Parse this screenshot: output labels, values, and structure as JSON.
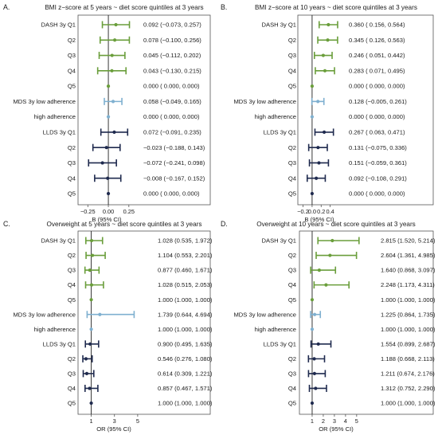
{
  "chart_data": [
    {
      "type": "forest",
      "panel": "A.",
      "title": "BMI z−score at 5 years ~ diet score quintiles at 3 years",
      "xlabel": "B (95% CI)",
      "xlim": [
        -0.35,
        0.31
      ],
      "xticks": [
        -0.25,
        0.0,
        0.25
      ],
      "xtick_labels": [
        "−0.25",
        "0.00",
        "0.25"
      ],
      "ref_line": 0,
      "rows": [
        {
          "label": "DASH 3y Q1",
          "est": 0.092,
          "lo": -0.073,
          "hi": 0.257,
          "text": "0.092 (−0.073, 0.257)",
          "group": "DASH"
        },
        {
          "label": "Q2",
          "est": 0.078,
          "lo": -0.1,
          "hi": 0.256,
          "text": "0.078 (−0.100, 0.256)",
          "group": "DASH"
        },
        {
          "label": "Q3",
          "est": 0.045,
          "lo": -0.112,
          "hi": 0.202,
          "text": "0.045 (−0.112, 0.202)",
          "group": "DASH"
        },
        {
          "label": "Q4",
          "est": 0.043,
          "lo": -0.13,
          "hi": 0.215,
          "text": "0.043 (−0.130, 0.215)",
          "group": "DASH"
        },
        {
          "label": "Q5",
          "est": 0.0,
          "lo": 0.0,
          "hi": 0.0,
          "text": "0.000 ( 0.000, 0.000)",
          "group": "DASH"
        },
        {
          "label": "MDS 3y low adherence",
          "est": 0.058,
          "lo": -0.049,
          "hi": 0.165,
          "text": "0.058 (−0.049, 0.165)",
          "group": "MDS"
        },
        {
          "label": "high adherence",
          "est": 0.0,
          "lo": 0.0,
          "hi": 0.0,
          "text": "0.000 ( 0.000, 0.000)",
          "group": "MDS"
        },
        {
          "label": "LLDS 3y Q1",
          "est": 0.072,
          "lo": -0.091,
          "hi": 0.235,
          "text": "0.072 (−0.091, 0.235)",
          "group": "LLDS"
        },
        {
          "label": "Q2",
          "est": -0.023,
          "lo": -0.188,
          "hi": 0.143,
          "text": "−0.023 (−0.188, 0.143)",
          "group": "LLDS"
        },
        {
          "label": "Q3",
          "est": -0.072,
          "lo": -0.241,
          "hi": 0.098,
          "text": "−0.072 (−0.241, 0.098)",
          "group": "LLDS"
        },
        {
          "label": "Q4",
          "est": -0.008,
          "lo": -0.167,
          "hi": 0.152,
          "text": "−0.008 (−0.167, 0.152)",
          "group": "LLDS"
        },
        {
          "label": "Q5",
          "est": 0.0,
          "lo": 0.0,
          "hi": 0.0,
          "text": "0.000 ( 0.000, 0.000)",
          "group": "LLDS"
        }
      ]
    },
    {
      "type": "forest",
      "panel": "B.",
      "title": "BMI z−score at 10 years ~ diet score quintiles at 3 years",
      "xlabel": "B (95% CI)",
      "xlim": [
        -0.28,
        0.6
      ],
      "xticks": [
        -0.2,
        0.0,
        0.2,
        0.4
      ],
      "xtick_labels": [
        "−0.2",
        "0.0",
        "0.2",
        "0.4"
      ],
      "ref_line": 0,
      "rows": [
        {
          "label": "DASH 3y Q1",
          "est": 0.36,
          "lo": 0.156,
          "hi": 0.564,
          "text": "0.360 ( 0.156, 0.564)",
          "group": "DASH"
        },
        {
          "label": "Q2",
          "est": 0.345,
          "lo": 0.126,
          "hi": 0.563,
          "text": "0.345 ( 0.126, 0.563)",
          "group": "DASH"
        },
        {
          "label": "Q3",
          "est": 0.246,
          "lo": 0.051,
          "hi": 0.442,
          "text": "0.246 ( 0.051, 0.442)",
          "group": "DASH"
        },
        {
          "label": "Q4",
          "est": 0.283,
          "lo": 0.071,
          "hi": 0.495,
          "text": "0.283 ( 0.071, 0.495)",
          "group": "DASH"
        },
        {
          "label": "Q5",
          "est": 0.0,
          "lo": 0.0,
          "hi": 0.0,
          "text": "0.000 ( 0.000, 0.000)",
          "group": "DASH"
        },
        {
          "label": "MDS 3y low adherence",
          "est": 0.128,
          "lo": -0.005,
          "hi": 0.261,
          "text": "0.128 (−0.005, 0.261)",
          "group": "MDS"
        },
        {
          "label": "high adherence",
          "est": 0.0,
          "lo": 0.0,
          "hi": 0.0,
          "text": "0.000 ( 0.000, 0.000)",
          "group": "MDS"
        },
        {
          "label": "LLDS 3y Q1",
          "est": 0.267,
          "lo": 0.063,
          "hi": 0.471,
          "text": "0.267 ( 0.063, 0.471)",
          "group": "LLDS"
        },
        {
          "label": "Q2",
          "est": 0.131,
          "lo": -0.075,
          "hi": 0.336,
          "text": "0.131 (−0.075, 0.336)",
          "group": "LLDS"
        },
        {
          "label": "Q3",
          "est": 0.151,
          "lo": -0.059,
          "hi": 0.361,
          "text": "0.151 (−0.059, 0.361)",
          "group": "LLDS"
        },
        {
          "label": "Q4",
          "est": 0.092,
          "lo": -0.108,
          "hi": 0.291,
          "text": "0.092 (−0.108, 0.291)",
          "group": "LLDS"
        },
        {
          "label": "Q5",
          "est": 0.0,
          "lo": 0.0,
          "hi": 0.0,
          "text": "0.000 ( 0.000, 0.000)",
          "group": "LLDS"
        }
      ]
    },
    {
      "type": "forest",
      "panel": "C.",
      "title": "Overweight at 5 years ~ diet score quintiles at 3 years",
      "xlabel": "OR (95% CI)",
      "xlim": [
        0.0,
        5.9
      ],
      "xticks": [
        1,
        3,
        5
      ],
      "xtick_labels": [
        "1",
        "3",
        "5"
      ],
      "ref_line": 1,
      "rows": [
        {
          "label": "DASH 3y Q1",
          "est": 1.028,
          "lo": 0.535,
          "hi": 1.972,
          "text": "1.028 (0.535, 1.972)",
          "group": "DASH"
        },
        {
          "label": "Q2",
          "est": 1.104,
          "lo": 0.553,
          "hi": 2.201,
          "text": "1.104 (0.553, 2.201)",
          "group": "DASH"
        },
        {
          "label": "Q3",
          "est": 0.877,
          "lo": 0.46,
          "hi": 1.671,
          "text": "0.877 (0.460, 1.671)",
          "group": "DASH"
        },
        {
          "label": "Q4",
          "est": 1.028,
          "lo": 0.515,
          "hi": 2.053,
          "text": "1.028 (0.515, 2.053)",
          "group": "DASH"
        },
        {
          "label": "Q5",
          "est": 1.0,
          "lo": 1.0,
          "hi": 1.0,
          "text": "1.000 (1.000, 1.000)",
          "group": "DASH"
        },
        {
          "label": "MDS 3y low adherence",
          "est": 1.739,
          "lo": 0.644,
          "hi": 4.694,
          "text": "1.739 (0.644, 4.694)",
          "group": "MDS"
        },
        {
          "label": "high adherence",
          "est": 1.0,
          "lo": 1.0,
          "hi": 1.0,
          "text": "1.000 (1.000, 1.000)",
          "group": "MDS"
        },
        {
          "label": "LLDS 3y Q1",
          "est": 0.9,
          "lo": 0.495,
          "hi": 1.635,
          "text": "0.900 (0.495, 1.635)",
          "group": "LLDS"
        },
        {
          "label": "Q2",
          "est": 0.546,
          "lo": 0.276,
          "hi": 1.08,
          "text": "0.546 (0.276, 1.080)",
          "group": "LLDS"
        },
        {
          "label": "Q3",
          "est": 0.614,
          "lo": 0.309,
          "hi": 1.221,
          "text": "0.614 (0.309, 1.221)",
          "group": "LLDS"
        },
        {
          "label": "Q4",
          "est": 0.857,
          "lo": 0.467,
          "hi": 1.571,
          "text": "0.857 (0.467, 1.571)",
          "group": "LLDS"
        },
        {
          "label": "Q5",
          "est": 1.0,
          "lo": 1.0,
          "hi": 1.0,
          "text": "1.000 (1.000, 1.000)",
          "group": "LLDS"
        }
      ]
    },
    {
      "type": "forest",
      "panel": "D.",
      "title": "Overweight at 10 years ~ diet score quintiles at 3 years",
      "xlabel": "OR (95% CI)",
      "xlim": [
        0.0,
        6.3
      ],
      "xticks": [
        1,
        2,
        3,
        4,
        5
      ],
      "xtick_labels": [
        "1",
        "2",
        "3",
        "4",
        "5"
      ],
      "ref_line": 1,
      "rows": [
        {
          "label": "DASH 3y Q1",
          "est": 2.815,
          "lo": 1.52,
          "hi": 5.214,
          "text": "2.815 (1.520, 5.214)",
          "group": "DASH"
        },
        {
          "label": "Q2",
          "est": 2.604,
          "lo": 1.361,
          "hi": 4.985,
          "text": "2.604 (1.361, 4.985)",
          "group": "DASH"
        },
        {
          "label": "Q3",
          "est": 1.64,
          "lo": 0.868,
          "hi": 3.097,
          "text": "1.640 (0.868, 3.097)",
          "group": "DASH"
        },
        {
          "label": "Q4",
          "est": 2.248,
          "lo": 1.173,
          "hi": 4.311,
          "text": "2.248 (1.173, 4.311)",
          "group": "DASH"
        },
        {
          "label": "Q5",
          "est": 1.0,
          "lo": 1.0,
          "hi": 1.0,
          "text": "1.000 (1.000, 1.000)",
          "group": "DASH"
        },
        {
          "label": "MDS 3y low adherence",
          "est": 1.225,
          "lo": 0.864,
          "hi": 1.735,
          "text": "1.225 (0.864, 1.735)",
          "group": "MDS"
        },
        {
          "label": "high adherence",
          "est": 1.0,
          "lo": 1.0,
          "hi": 1.0,
          "text": "1.000 (1.000, 1.000)",
          "group": "MDS"
        },
        {
          "label": "LLDS 3y Q1",
          "est": 1.554,
          "lo": 0.899,
          "hi": 2.687,
          "text": "1.554 (0.899, 2.687)",
          "group": "LLDS"
        },
        {
          "label": "Q2",
          "est": 1.188,
          "lo": 0.668,
          "hi": 2.113,
          "text": "1.188 (0.668, 2.113)",
          "group": "LLDS"
        },
        {
          "label": "Q3",
          "est": 1.211,
          "lo": 0.674,
          "hi": 2.176,
          "text": "1.211 (0.674, 2.176)",
          "group": "LLDS"
        },
        {
          "label": "Q4",
          "est": 1.312,
          "lo": 0.752,
          "hi": 2.29,
          "text": "1.312 (0.752, 2.290)",
          "group": "LLDS"
        },
        {
          "label": "Q5",
          "est": 1.0,
          "lo": 1.0,
          "hi": 1.0,
          "text": "1.000 (1.000, 1.000)",
          "group": "LLDS"
        }
      ]
    }
  ],
  "colors": {
    "DASH": "#6a9e3b",
    "MDS": "#7fb0d0",
    "LLDS": "#1f2a4e",
    "ref_line": "#222222",
    "frame": "#555555"
  }
}
